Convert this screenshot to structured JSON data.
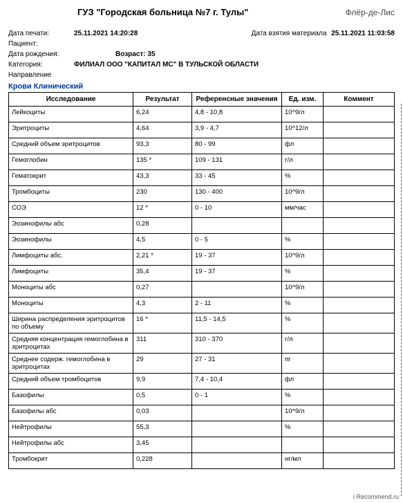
{
  "hospital_name": "ГУЗ \"Городская больница №7 г. Тулы\"",
  "topright": "Флёр-де-Лис",
  "meta": {
    "print_label": "Дата печати:",
    "print_value": "25.11.2021  14:20:28",
    "sample_label": "Дата взятия материала",
    "sample_value": "25.11.2021 11:03:58",
    "patient_label": "Пациент:",
    "birth_label": "Дата рождения:",
    "age_label": "Возраст: 35",
    "category_label": "Категория:",
    "category_value": "ФИЛИАЛ ООО \"КАПИТАЛ МС\" В ТУЛЬСКОЙ ОБЛАСТИ",
    "direction_label": "Направление"
  },
  "section": "Крови Клинический",
  "columns": {
    "c1": "Исследование",
    "c2": "Результат",
    "c3": "Референсные значения",
    "c4": "Ед. изм.",
    "c5": "Коммент"
  },
  "rows": [
    {
      "n": "Лейкоциты",
      "r": "6,24",
      "ref": "4,8 - 10,8",
      "u": "10^9/л",
      "c": ""
    },
    {
      "n": "Эритроциты",
      "r": "4,64",
      "ref": "3,9 - 4,7",
      "u": "10^12/л",
      "c": ""
    },
    {
      "n": "Средний объем эритроцитов",
      "r": "93,3",
      "ref": "80 - 99",
      "u": "фл",
      "c": ""
    },
    {
      "n": "Гемоглобин",
      "r": "135 *",
      "ref": "109 - 131",
      "u": "г/л",
      "c": ""
    },
    {
      "n": "Гематокрит",
      "r": "43,3",
      "ref": "33 - 45",
      "u": "%",
      "c": ""
    },
    {
      "n": "Тромбоциты",
      "r": "230",
      "ref": "130 - 400",
      "u": "10^9/л",
      "c": ""
    },
    {
      "n": "СОЭ",
      "r": "12 *",
      "ref": "0 - 10",
      "u": "мм/час",
      "c": ""
    },
    {
      "n": "Эозинофилы абс",
      "r": "0,28",
      "ref": "",
      "u": "",
      "c": ""
    },
    {
      "n": "Эозинофилы",
      "r": "4,5",
      "ref": "0 - 5",
      "u": "%",
      "c": ""
    },
    {
      "n": "Лимфоциты абс.",
      "r": "2,21 *",
      "ref": "19 - 37",
      "u": "10^9/л",
      "c": ""
    },
    {
      "n": "Лимфоциты",
      "r": "35,4",
      "ref": "19 - 37",
      "u": "%",
      "c": ""
    },
    {
      "n": "Моноциты абс",
      "r": "0,27",
      "ref": "",
      "u": "10^9/л",
      "c": ""
    },
    {
      "n": "Моноциты",
      "r": "4,3",
      "ref": "2 - 11",
      "u": "%",
      "c": ""
    },
    {
      "n": "Ширина распределения эритроцитов по объему",
      "r": "16 *",
      "ref": "11,5 - 14,5",
      "u": "%",
      "c": ""
    },
    {
      "n": "Средняя концентрация гемоглобина в эритроцитах",
      "r": "311",
      "ref": "310 - 370",
      "u": "г/л",
      "c": ""
    },
    {
      "n": "Среднее содерж.  гемоглобина в эритроцитах",
      "r": "29",
      "ref": "27 - 31",
      "u": "пг",
      "c": ""
    },
    {
      "n": "Средний объем тромбоцитов",
      "r": "9,9",
      "ref": "7,4 - 10,4",
      "u": "фл",
      "c": ""
    },
    {
      "n": "Базофилы",
      "r": "0,5",
      "ref": "0 - 1",
      "u": "%",
      "c": ""
    },
    {
      "n": "Базофилы абс",
      "r": "0,03",
      "ref": "",
      "u": "10^9/л",
      "c": ""
    },
    {
      "n": "Нейтрофилы",
      "r": "55,3",
      "ref": "",
      "u": "%",
      "c": ""
    },
    {
      "n": "Нейтрофилы абс",
      "r": "3,45",
      "ref": "",
      "u": "",
      "c": ""
    },
    {
      "n": "Тромбокрит",
      "r": "0,228",
      "ref": "",
      "u": "нг/мл",
      "c": ""
    }
  ],
  "footer_wm": "i Recommend.ru"
}
